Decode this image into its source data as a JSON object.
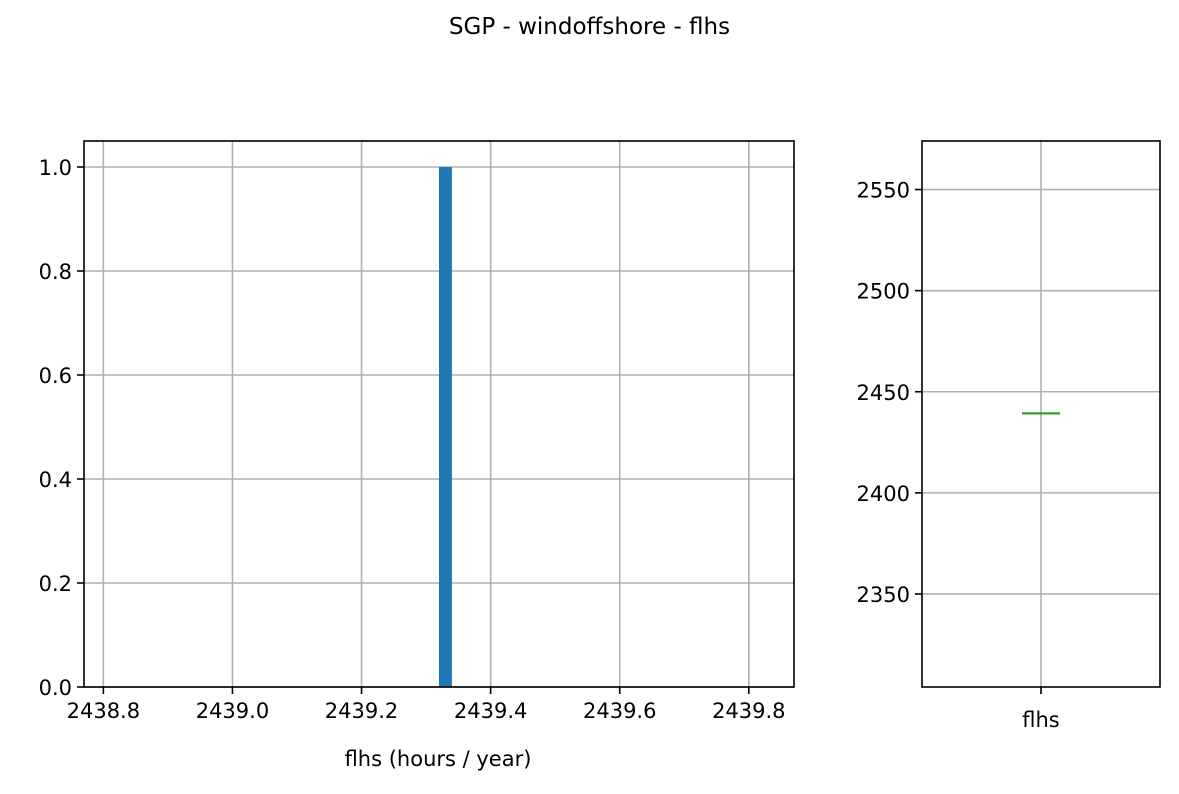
{
  "figure": {
    "title": "SGP - windoffshore - flhs"
  },
  "chart_data": [
    {
      "type": "bar",
      "title": "",
      "xlabel": "flhs (hours / year)",
      "ylabel": "",
      "xlim": [
        2438.77,
        2439.87
      ],
      "ylim": [
        0,
        1.05
      ],
      "xticks": [
        "2438.8",
        "2439.0",
        "2439.2",
        "2439.4",
        "2439.6",
        "2439.8"
      ],
      "xtick_values": [
        2438.8,
        2439.0,
        2439.2,
        2439.4,
        2439.6,
        2439.8
      ],
      "yticks": [
        "0.0",
        "0.2",
        "0.4",
        "0.6",
        "0.8",
        "1.0"
      ],
      "ytick_values": [
        0.0,
        0.2,
        0.4,
        0.6,
        0.8,
        1.0
      ],
      "bins": [
        {
          "x0": 2439.32,
          "x1": 2439.34,
          "count": 1
        }
      ],
      "bar_color": "#1f77b4",
      "grid": true
    },
    {
      "type": "box",
      "title": "",
      "categories": [
        "flhs"
      ],
      "median": [
        2439.3
      ],
      "ylim": [
        2304,
        2574
      ],
      "yticks": [
        "2350",
        "2400",
        "2450",
        "2500",
        "2550"
      ],
      "ytick_values": [
        2350,
        2400,
        2450,
        2500,
        2550
      ],
      "median_color": "#2ca02c",
      "grid": true
    }
  ]
}
